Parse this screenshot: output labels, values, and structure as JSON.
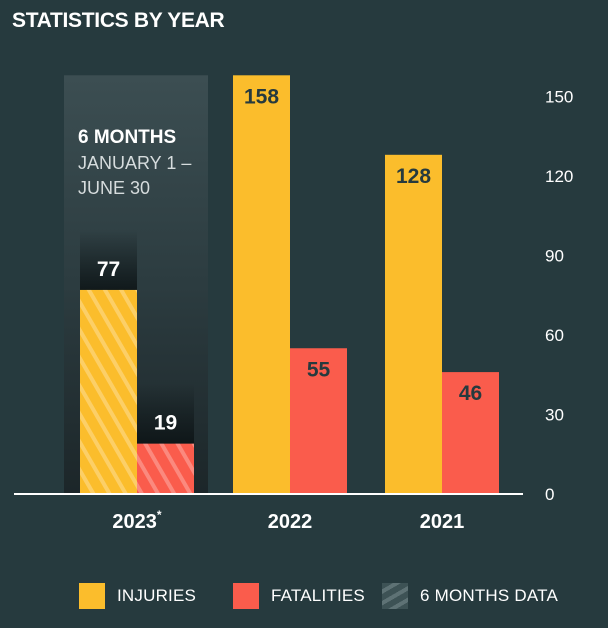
{
  "title": "STATISTICS BY YEAR",
  "colors": {
    "background": "#263a3e",
    "injuries": "#fbbd2c",
    "fatalities": "#fa5c4c",
    "six_months_panel": "#3a4c50"
  },
  "annotation": {
    "heading": "6 MONTHS",
    "line1": "JANUARY 1 –",
    "line2": "JUNE 30"
  },
  "legend": [
    {
      "label": "INJURIES",
      "swatch": "injuries"
    },
    {
      "label": "FATALITIES",
      "swatch": "fatalities"
    },
    {
      "label": "6 MONTHS DATA",
      "swatch": "hatch"
    }
  ],
  "chart_data": {
    "type": "bar",
    "title": "STATISTICS BY YEAR",
    "categories": [
      "2023",
      "2022",
      "2021"
    ],
    "category_footnote_marks": [
      "*",
      "",
      ""
    ],
    "series": [
      {
        "name": "INJURIES",
        "values": [
          77,
          158,
          128
        ]
      },
      {
        "name": "FATALITIES",
        "values": [
          19,
          55,
          46
        ]
      }
    ],
    "partial_period_categories": [
      "2023"
    ],
    "ylim": [
      0,
      158
    ],
    "yticks": [
      0,
      30,
      60,
      90,
      120,
      150
    ],
    "y_axis_position": "right",
    "legend_position": "bottom",
    "grid": false
  }
}
